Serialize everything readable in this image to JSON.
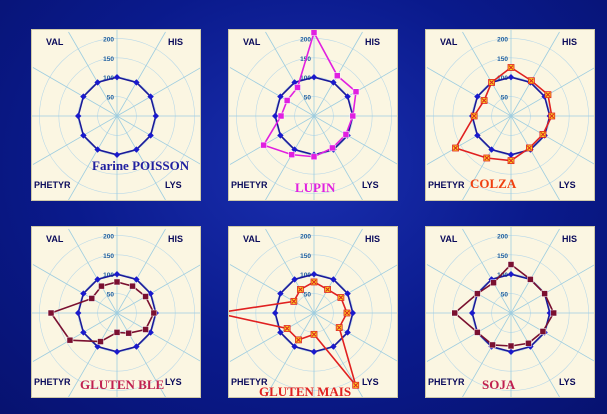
{
  "axis_labels": {
    "val": "VAL",
    "his": "HIS",
    "phetyr": "PHETYR",
    "lys": "LYS"
  },
  "ticks": [
    "200",
    "150",
    "100",
    "50"
  ],
  "colors": {
    "reference": "#1a1a9a",
    "reference_marker": "#1a1acc"
  },
  "chart_data": [
    {
      "type": "radar",
      "title": "Farine POISSON",
      "title_color": "#2020a0",
      "rlim": [
        0,
        250
      ],
      "axes": [
        "VAL",
        "a2",
        "a3",
        "HIS",
        "a5",
        "a6",
        "LYS",
        "a8",
        "a9",
        "PHETYR",
        "a11",
        "a12"
      ],
      "series": [
        {
          "values": [
            100,
            100,
            100,
            100,
            100,
            100,
            100,
            100,
            100,
            100,
            100,
            100
          ],
          "color": "#1a1a9a",
          "marker": "diamond"
        }
      ]
    },
    {
      "type": "radar",
      "title": "LUPIN",
      "title_color": "#e020e0",
      "rlim": [
        0,
        250
      ],
      "axes": [
        "VAL",
        "a2",
        "a3",
        "HIS",
        "a5",
        "a6",
        "LYS",
        "a8",
        "a9",
        "PHETYR",
        "a11",
        "a12"
      ],
      "series": [
        {
          "values": [
            100,
            100,
            100,
            100,
            100,
            100,
            100,
            100,
            100,
            100,
            100,
            100
          ],
          "color": "#1a1a9a",
          "marker": "diamond"
        },
        {
          "values": [
            215,
            120,
            125,
            100,
            95,
            95,
            105,
            115,
            150,
            85,
            80,
            85
          ],
          "color": "#e020e0",
          "marker": "square"
        }
      ]
    },
    {
      "type": "radar",
      "title": "COLZA",
      "title_color": "#f04010",
      "rlim": [
        0,
        250
      ],
      "axes": [
        "VAL",
        "a2",
        "a3",
        "HIS",
        "a5",
        "a6",
        "LYS",
        "a8",
        "a9",
        "PHETYR",
        "a11",
        "a12"
      ],
      "series": [
        {
          "values": [
            100,
            100,
            100,
            100,
            100,
            100,
            100,
            100,
            100,
            100,
            100,
            100
          ],
          "color": "#1a1a9a",
          "marker": "diamond"
        },
        {
          "values": [
            125,
            105,
            110,
            105,
            95,
            95,
            115,
            125,
            165,
            95,
            80,
            100
          ],
          "color": "#e02020",
          "marker": "x"
        }
      ]
    },
    {
      "type": "radar",
      "title": "GLUTEN BLE",
      "title_color": "#c02050",
      "rlim": [
        0,
        250
      ],
      "axes": [
        "VAL",
        "a2",
        "a3",
        "HIS",
        "a5",
        "a6",
        "LYS",
        "a8",
        "a9",
        "PHETYR",
        "a11",
        "a12"
      ],
      "series": [
        {
          "values": [
            100,
            100,
            100,
            100,
            100,
            100,
            100,
            100,
            100,
            100,
            100,
            100
          ],
          "color": "#1a1a9a",
          "marker": "diamond"
        },
        {
          "values": [
            80,
            80,
            85,
            95,
            85,
            60,
            50,
            85,
            140,
            170,
            75,
            80
          ],
          "color": "#7a1030",
          "marker": "square"
        }
      ]
    },
    {
      "type": "radar",
      "title": "GLUTEN MAIS",
      "title_color": "#e02020",
      "rlim": [
        0,
        250
      ],
      "axes": [
        "VAL",
        "a2",
        "a3",
        "HIS",
        "a5",
        "a6",
        "LYS",
        "a8",
        "a9",
        "PHETYR",
        "a11",
        "a12"
      ],
      "series": [
        {
          "values": [
            100,
            100,
            100,
            100,
            100,
            100,
            100,
            100,
            100,
            100,
            100,
            100
          ],
          "color": "#1a1a9a",
          "marker": "diamond"
        },
        {
          "values": [
            80,
            70,
            80,
            85,
            75,
            215,
            55,
            80,
            80,
            255,
            60,
            70
          ],
          "color": "#e02020",
          "marker": "x"
        }
      ]
    },
    {
      "type": "radar",
      "title": "SOJA",
      "title_color": "#c02050",
      "rlim": [
        0,
        250
      ],
      "axes": [
        "VAL",
        "a2",
        "a3",
        "HIS",
        "a5",
        "a6",
        "LYS",
        "a8",
        "a9",
        "PHETYR",
        "a11",
        "a12"
      ],
      "series": [
        {
          "values": [
            100,
            100,
            100,
            100,
            100,
            100,
            100,
            100,
            100,
            100,
            100,
            100
          ],
          "color": "#1a1a9a",
          "marker": "diamond"
        },
        {
          "values": [
            125,
            100,
            100,
            110,
            95,
            90,
            85,
            95,
            100,
            145,
            100,
            90
          ],
          "color": "#7a1030",
          "marker": "square"
        }
      ]
    }
  ]
}
